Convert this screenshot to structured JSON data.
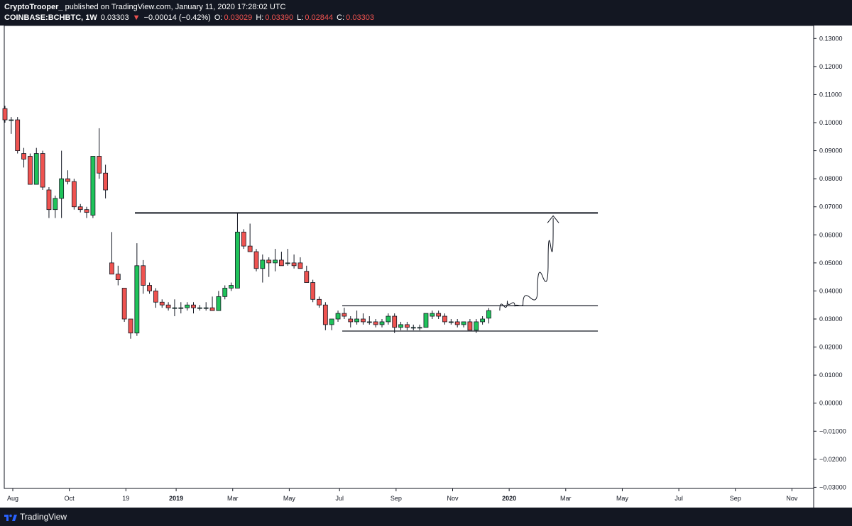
{
  "header": {
    "author": "CryptoTrooper_",
    "published": "published on TradingView.com, January 11, 2020 17:28:02 UTC",
    "symbol": "COINBASE:BCHBTC, 1W",
    "price": "0.03303",
    "change_arrow": "▼",
    "change": "−0.00014 (−0.42%)",
    "o_label": "O:",
    "o_value": "0.03029",
    "h_label": "H:",
    "h_value": "0.03390",
    "l_label": "L:",
    "l_value": "0.02844",
    "c_label": "C:",
    "c_value": "0.03303"
  },
  "footer": {
    "brand": "TradingView",
    "logo_icon": "tradingview-logo-icon"
  },
  "colors": {
    "up": "#26a69a",
    "up_fill": "#1fc35a",
    "down": "#ef5350",
    "frame": "#131722"
  },
  "chart_data": {
    "type": "candlestick",
    "ylim": [
      -0.0325,
      0.1325
    ],
    "y_ticks": [
      "0.13000",
      "0.12000",
      "0.11000",
      "0.10000",
      "0.09000",
      "0.08000",
      "0.07000",
      "0.06000",
      "0.05000",
      "0.04000",
      "0.03000",
      "0.02000",
      "0.01000",
      "0.00000",
      "−0.01000",
      "−0.02000",
      "−0.03000"
    ],
    "y_tick_values": [
      0.13,
      0.12,
      0.11,
      0.1,
      0.09,
      0.08,
      0.07,
      0.06,
      0.05,
      0.04,
      0.03,
      0.02,
      0.01,
      0.0,
      -0.01,
      -0.02,
      -0.03
    ],
    "x_ticks": [
      {
        "label": "Aug",
        "week": 0,
        "bold": false
      },
      {
        "label": "Oct",
        "week": 9,
        "bold": false
      },
      {
        "label": "19",
        "week": 18,
        "bold": false
      },
      {
        "label": "2019",
        "week": 26,
        "bold": true
      },
      {
        "label": "Mar",
        "week": 35,
        "bold": false
      },
      {
        "label": "May",
        "week": 44,
        "bold": false
      },
      {
        "label": "Jul",
        "week": 52,
        "bold": false
      },
      {
        "label": "Sep",
        "week": 61,
        "bold": false
      },
      {
        "label": "Nov",
        "week": 70,
        "bold": false
      },
      {
        "label": "2020",
        "week": 79,
        "bold": true
      },
      {
        "label": "Mar",
        "week": 88,
        "bold": false
      },
      {
        "label": "May",
        "week": 97,
        "bold": false
      },
      {
        "label": "Jul",
        "week": 106,
        "bold": false
      },
      {
        "label": "Sep",
        "week": 115,
        "bold": false
      },
      {
        "label": "Nov",
        "week": 124,
        "bold": false
      }
    ],
    "candles": [
      {
        "o": 0.105,
        "h": 0.106,
        "l": 0.1,
        "c": 0.101
      },
      {
        "o": 0.101,
        "h": 0.102,
        "l": 0.096,
        "c": 0.101
      },
      {
        "o": 0.101,
        "h": 0.102,
        "l": 0.089,
        "c": 0.09
      },
      {
        "o": 0.089,
        "h": 0.091,
        "l": 0.084,
        "c": 0.087
      },
      {
        "o": 0.088,
        "h": 0.089,
        "l": 0.078,
        "c": 0.078
      },
      {
        "o": 0.078,
        "h": 0.091,
        "l": 0.078,
        "c": 0.089
      },
      {
        "o": 0.089,
        "h": 0.09,
        "l": 0.076,
        "c": 0.077
      },
      {
        "o": 0.076,
        "h": 0.077,
        "l": 0.066,
        "c": 0.069
      },
      {
        "o": 0.069,
        "h": 0.074,
        "l": 0.066,
        "c": 0.073
      },
      {
        "o": 0.073,
        "h": 0.09,
        "l": 0.066,
        "c": 0.08
      },
      {
        "o": 0.08,
        "h": 0.083,
        "l": 0.078,
        "c": 0.079
      },
      {
        "o": 0.079,
        "h": 0.08,
        "l": 0.069,
        "c": 0.07
      },
      {
        "o": 0.07,
        "h": 0.071,
        "l": 0.068,
        "c": 0.069
      },
      {
        "o": 0.069,
        "h": 0.07,
        "l": 0.066,
        "c": 0.068
      },
      {
        "o": 0.067,
        "h": 0.088,
        "l": 0.066,
        "c": 0.088
      },
      {
        "o": 0.088,
        "h": 0.098,
        "l": 0.08,
        "c": 0.082
      },
      {
        "o": 0.082,
        "h": 0.085,
        "l": 0.073,
        "c": 0.076
      },
      {
        "o": 0.05,
        "h": 0.061,
        "l": 0.046,
        "c": 0.046
      },
      {
        "o": 0.046,
        "h": 0.049,
        "l": 0.042,
        "c": 0.044
      },
      {
        "o": 0.041,
        "h": 0.041,
        "l": 0.029,
        "c": 0.03
      },
      {
        "o": 0.03,
        "h": 0.03,
        "l": 0.023,
        "c": 0.025
      },
      {
        "o": 0.025,
        "h": 0.057,
        "l": 0.024,
        "c": 0.049
      },
      {
        "o": 0.049,
        "h": 0.051,
        "l": 0.039,
        "c": 0.042
      },
      {
        "o": 0.042,
        "h": 0.043,
        "l": 0.039,
        "c": 0.04
      },
      {
        "o": 0.04,
        "h": 0.041,
        "l": 0.034,
        "c": 0.036
      },
      {
        "o": 0.036,
        "h": 0.037,
        "l": 0.034,
        "c": 0.035
      },
      {
        "o": 0.035,
        "h": 0.036,
        "l": 0.033,
        "c": 0.034
      },
      {
        "o": 0.034,
        "h": 0.037,
        "l": 0.031,
        "c": 0.034
      },
      {
        "o": 0.034,
        "h": 0.036,
        "l": 0.032,
        "c": 0.034
      },
      {
        "o": 0.034,
        "h": 0.036,
        "l": 0.033,
        "c": 0.035
      },
      {
        "o": 0.035,
        "h": 0.036,
        "l": 0.032,
        "c": 0.034
      },
      {
        "o": 0.034,
        "h": 0.035,
        "l": 0.033,
        "c": 0.034
      },
      {
        "o": 0.034,
        "h": 0.036,
        "l": 0.033,
        "c": 0.034
      },
      {
        "o": 0.034,
        "h": 0.038,
        "l": 0.033,
        "c": 0.033
      },
      {
        "o": 0.033,
        "h": 0.04,
        "l": 0.033,
        "c": 0.038
      },
      {
        "o": 0.038,
        "h": 0.042,
        "l": 0.037,
        "c": 0.041
      },
      {
        "o": 0.041,
        "h": 0.043,
        "l": 0.04,
        "c": 0.042
      },
      {
        "o": 0.041,
        "h": 0.068,
        "l": 0.041,
        "c": 0.061
      },
      {
        "o": 0.061,
        "h": 0.062,
        "l": 0.055,
        "c": 0.056
      },
      {
        "o": 0.056,
        "h": 0.064,
        "l": 0.055,
        "c": 0.054
      },
      {
        "o": 0.054,
        "h": 0.055,
        "l": 0.047,
        "c": 0.048
      },
      {
        "o": 0.048,
        "h": 0.053,
        "l": 0.043,
        "c": 0.051
      },
      {
        "o": 0.051,
        "h": 0.052,
        "l": 0.045,
        "c": 0.05
      },
      {
        "o": 0.05,
        "h": 0.055,
        "l": 0.047,
        "c": 0.051
      },
      {
        "o": 0.051,
        "h": 0.054,
        "l": 0.049,
        "c": 0.049
      },
      {
        "o": 0.05,
        "h": 0.055,
        "l": 0.049,
        "c": 0.05
      },
      {
        "o": 0.05,
        "h": 0.053,
        "l": 0.048,
        "c": 0.049
      },
      {
        "o": 0.05,
        "h": 0.052,
        "l": 0.048,
        "c": 0.048
      },
      {
        "o": 0.047,
        "h": 0.049,
        "l": 0.043,
        "c": 0.043
      },
      {
        "o": 0.043,
        "h": 0.044,
        "l": 0.036,
        "c": 0.037
      },
      {
        "o": 0.037,
        "h": 0.038,
        "l": 0.034,
        "c": 0.035
      },
      {
        "o": 0.035,
        "h": 0.036,
        "l": 0.026,
        "c": 0.028
      },
      {
        "o": 0.028,
        "h": 0.03,
        "l": 0.026,
        "c": 0.03
      },
      {
        "o": 0.03,
        "h": 0.033,
        "l": 0.029,
        "c": 0.032
      },
      {
        "o": 0.032,
        "h": 0.034,
        "l": 0.03,
        "c": 0.031
      },
      {
        "o": 0.03,
        "h": 0.031,
        "l": 0.027,
        "c": 0.029
      },
      {
        "o": 0.029,
        "h": 0.033,
        "l": 0.028,
        "c": 0.03
      },
      {
        "o": 0.03,
        "h": 0.032,
        "l": 0.028,
        "c": 0.029
      },
      {
        "o": 0.029,
        "h": 0.031,
        "l": 0.028,
        "c": 0.029
      },
      {
        "o": 0.029,
        "h": 0.03,
        "l": 0.027,
        "c": 0.028
      },
      {
        "o": 0.028,
        "h": 0.03,
        "l": 0.027,
        "c": 0.029
      },
      {
        "o": 0.029,
        "h": 0.032,
        "l": 0.028,
        "c": 0.031
      },
      {
        "o": 0.031,
        "h": 0.032,
        "l": 0.025,
        "c": 0.027
      },
      {
        "o": 0.027,
        "h": 0.029,
        "l": 0.026,
        "c": 0.028
      },
      {
        "o": 0.028,
        "h": 0.029,
        "l": 0.026,
        "c": 0.027
      },
      {
        "o": 0.027,
        "h": 0.028,
        "l": 0.026,
        "c": 0.027
      },
      {
        "o": 0.027,
        "h": 0.028,
        "l": 0.026,
        "c": 0.027
      },
      {
        "o": 0.027,
        "h": 0.032,
        "l": 0.027,
        "c": 0.032
      },
      {
        "o": 0.031,
        "h": 0.033,
        "l": 0.03,
        "c": 0.032
      },
      {
        "o": 0.032,
        "h": 0.033,
        "l": 0.03,
        "c": 0.031
      },
      {
        "o": 0.031,
        "h": 0.032,
        "l": 0.028,
        "c": 0.029
      },
      {
        "o": 0.029,
        "h": 0.03,
        "l": 0.028,
        "c": 0.029
      },
      {
        "o": 0.029,
        "h": 0.03,
        "l": 0.027,
        "c": 0.028
      },
      {
        "o": 0.028,
        "h": 0.029,
        "l": 0.027,
        "c": 0.029
      },
      {
        "o": 0.029,
        "h": 0.03,
        "l": 0.026,
        "c": 0.026
      },
      {
        "o": 0.026,
        "h": 0.03,
        "l": 0.025,
        "c": 0.029
      },
      {
        "o": 0.029,
        "h": 0.031,
        "l": 0.028,
        "c": 0.03
      },
      {
        "o": 0.0303,
        "h": 0.0339,
        "l": 0.0284,
        "c": 0.033
      }
    ],
    "annotations": {
      "resistance": {
        "y": 0.0678,
        "from_week": 20,
        "to_week": 93
      },
      "range_top": {
        "y": 0.0347,
        "from_week": 53,
        "to_week": 93
      },
      "range_bottom": {
        "y": 0.0257,
        "from_week": 53,
        "to_week": 93
      },
      "projection": [
        {
          "week": 77.5,
          "y": 0.033
        },
        {
          "week": 78.7,
          "y": 0.0365
        },
        {
          "week": 79.9,
          "y": 0.0345
        },
        {
          "week": 81.2,
          "y": 0.0352
        },
        {
          "week": 83.5,
          "y": 0.04
        },
        {
          "week": 85.2,
          "y": 0.05
        },
        {
          "week": 86.0,
          "y": 0.062
        },
        {
          "week": 86.0,
          "y": 0.066
        }
      ],
      "arrow_head_at": {
        "week": 86.0,
        "y": 0.0668
      }
    }
  }
}
